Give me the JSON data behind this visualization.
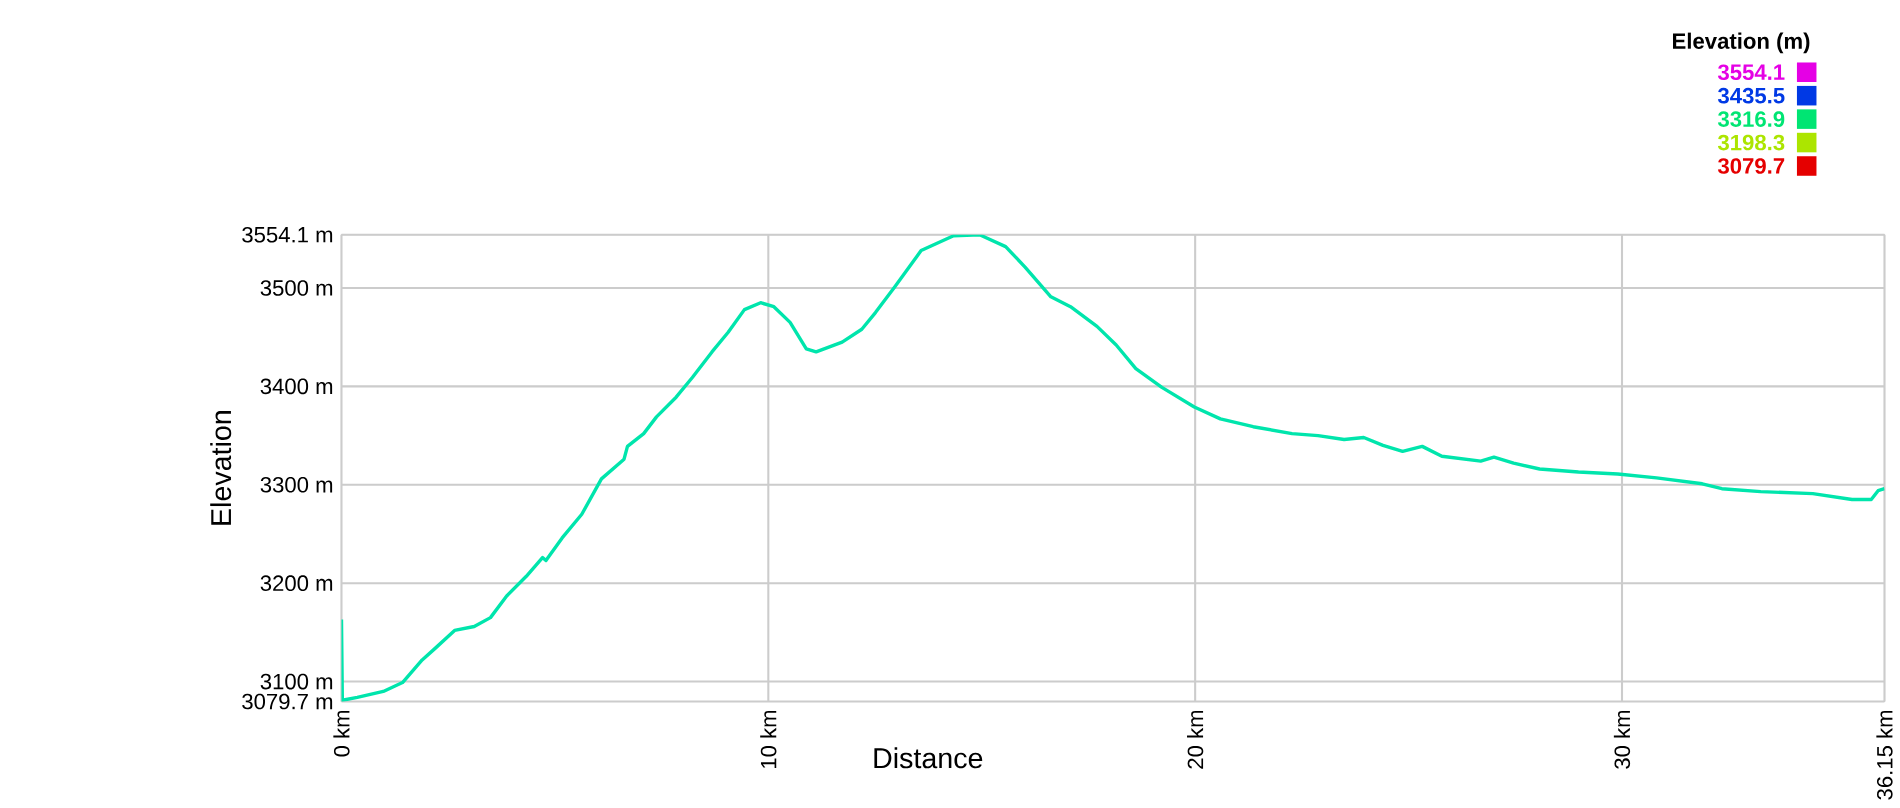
{
  "chart_data": {
    "type": "line",
    "xlabel": "Distance",
    "ylabel": "Elevation",
    "clabel": "Elevation (m)",
    "x": [
      0,
      0.02,
      0.37,
      0.98,
      1.43,
      1.89,
      2.2,
      2.65,
      3.11,
      3.49,
      3.87,
      4.33,
      4.71,
      4.79,
      5.17,
      5.63,
      6.09,
      6.62,
      6.7,
      7.08,
      7.38,
      7.84,
      8.22,
      8.68,
      9.06,
      9.44,
      9.82,
      10.13,
      10.51,
      10.89,
      11.12,
      11.73,
      12.19,
      12.51,
      12.96,
      13.58,
      14.34,
      14.95,
      15.56,
      16.02,
      16.62,
      17.08,
      17.7,
      18.15,
      18.61,
      19.22,
      19.98,
      20.59,
      21.36,
      22.27,
      22.88,
      23.49,
      23.95,
      24.4,
      24.86,
      25.32,
      25.78,
      26.69,
      27.0,
      27.46,
      28.07,
      28.98,
      29.9,
      30.81,
      31.88,
      32.34,
      33.25,
      34.47,
      35.39,
      35.84,
      36.0,
      36.15
    ],
    "series": [
      {
        "values": [
          3163,
          3081,
          3084,
          3090,
          3099,
          3122,
          3134,
          3152,
          3156,
          3165,
          3187,
          3207,
          3226,
          3223,
          3246,
          3270,
          3306,
          3326,
          3339,
          3352,
          3369,
          3389,
          3409,
          3435,
          3455,
          3478,
          3485,
          3481,
          3465,
          3438,
          3435,
          3445,
          3458,
          3475,
          3501,
          3538,
          3553,
          3554,
          3542,
          3521,
          3491,
          3481,
          3461,
          3442,
          3418,
          3399,
          3379,
          3367,
          3359,
          3352,
          3350,
          3346,
          3348,
          3340,
          3334,
          3339,
          3329,
          3324,
          3328,
          3322,
          3316,
          3313,
          3311,
          3307,
          3301,
          3296,
          3293,
          3291,
          3285,
          3285,
          3294,
          3296
        ]
      }
    ],
    "xlim": [
      0,
      36.15
    ],
    "ylim": [
      3079.7,
      3554.1
    ],
    "xticks": [
      {
        "value": 0,
        "label": "0 km"
      },
      {
        "value": 10,
        "label": "10 km"
      },
      {
        "value": 20,
        "label": "20 km"
      },
      {
        "value": 30,
        "label": "30 km"
      },
      {
        "value": 36.15,
        "label": "36.15 km"
      }
    ],
    "yticks": [
      {
        "value": 3079.7,
        "label": "3079.7 m"
      },
      {
        "value": 3100,
        "label": "3100 m"
      },
      {
        "value": 3200,
        "label": "3200 m"
      },
      {
        "value": 3300,
        "label": "3300 m"
      },
      {
        "value": 3400,
        "label": "3400 m"
      },
      {
        "value": 3500,
        "label": "3500 m"
      },
      {
        "value": 3554.1,
        "label": "3554.1 m"
      }
    ],
    "clim": [
      3079.7,
      3554.1
    ],
    "cticks": [
      3079.7,
      3198.3,
      3316.9,
      3435.5,
      3554.1
    ],
    "grid": true
  }
}
